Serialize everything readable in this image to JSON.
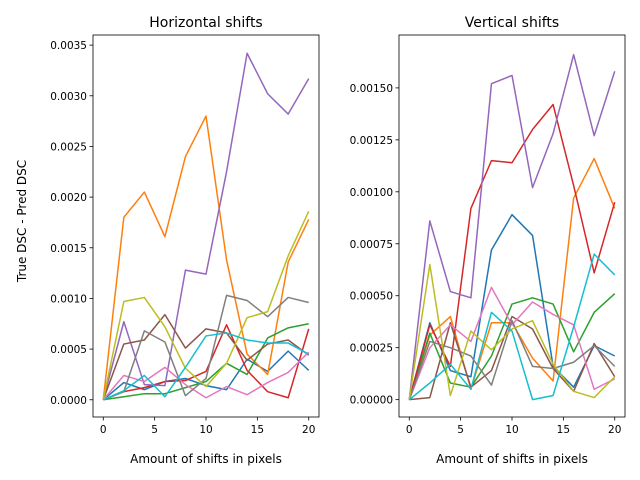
{
  "chart_data": [
    {
      "type": "line",
      "title": "Horizontal shifts",
      "xlabel": "Amount of shifts in pixels",
      "ylabel": "True DSC - Pred DSC",
      "x": [
        0,
        2,
        4,
        6,
        8,
        10,
        12,
        14,
        16,
        18,
        20
      ],
      "xlim": [
        -1,
        21
      ],
      "ylim": [
        -0.00017,
        0.0036
      ],
      "xticks": [
        0,
        5,
        10,
        15,
        20
      ],
      "yticks": [
        0.0,
        0.0005,
        0.001,
        0.0015,
        0.002,
        0.0025,
        0.003,
        0.0035
      ],
      "ytick_labels": [
        "0.0000",
        "0.0005",
        "0.0010",
        "0.0015",
        "0.0020",
        "0.0025",
        "0.0030",
        "0.0035"
      ],
      "grid": false,
      "series": [
        {
          "color": "#1f77b4",
          "values": [
            0.0,
            0.00017,
            0.0001,
            0.00018,
            0.00021,
            0.00014,
            0.0001,
            0.0004,
            0.00028,
            0.00048,
            0.00029
          ]
        },
        {
          "color": "#ff7f0e",
          "values": [
            0.0,
            0.0018,
            0.00205,
            0.00161,
            0.0024,
            0.0028,
            0.00138,
            0.00045,
            0.00025,
            0.00136,
            0.00178
          ]
        },
        {
          "color": "#2ca02c",
          "values": [
            0.0,
            3e-05,
            6e-05,
            6e-05,
            0.00012,
            0.00018,
            0.00036,
            0.00025,
            0.00061,
            0.00071,
            0.00075
          ]
        },
        {
          "color": "#d62728",
          "values": [
            0.0,
            8e-05,
            0.00012,
            0.00018,
            0.00019,
            0.00028,
            0.00074,
            0.00029,
            8e-05,
            2e-05,
            0.0007
          ]
        },
        {
          "color": "#9467bd",
          "values": [
            0.0,
            0.00077,
            0.00015,
            0.00014,
            0.00128,
            0.00124,
            0.00225,
            0.00342,
            0.00302,
            0.00282,
            0.00317
          ]
        },
        {
          "color": "#8c564b",
          "values": [
            0.0,
            0.00055,
            0.00059,
            0.00084,
            0.00051,
            0.0007,
            0.00066,
            0.00039,
            0.00055,
            0.00059,
            0.00044
          ]
        },
        {
          "color": "#e377c2",
          "values": [
            0.0,
            0.00024,
            0.00018,
            0.00032,
            0.00015,
            2e-05,
            0.00013,
            5e-05,
            0.00017,
            0.00027,
            0.00047
          ]
        },
        {
          "color": "#7f7f7f",
          "values": [
            0.0,
            8e-05,
            0.00068,
            0.00057,
            4e-05,
            0.00021,
            0.00103,
            0.00098,
            0.00082,
            0.00101,
            0.00096
          ]
        },
        {
          "color": "#bcbd22",
          "values": [
            0.0,
            0.00097,
            0.00101,
            0.00072,
            0.00031,
            0.00013,
            0.00036,
            0.00081,
            0.00087,
            0.00142,
            0.00186
          ]
        },
        {
          "color": "#17becf",
          "values": [
            0.0,
            9e-05,
            0.00024,
            3e-05,
            0.00032,
            0.00063,
            0.00066,
            0.00059,
            0.00056,
            0.00056,
            0.00045
          ]
        }
      ]
    },
    {
      "type": "line",
      "title": "Vertical shifts",
      "xlabel": "Amount of shifts in pixels",
      "ylabel": "",
      "x": [
        0,
        2,
        4,
        6,
        8,
        10,
        12,
        14,
        16,
        18,
        20
      ],
      "xlim": [
        -1,
        21
      ],
      "ylim": [
        -8.35e-05,
        0.0017545
      ],
      "xticks": [
        0,
        5,
        10,
        15,
        20
      ],
      "yticks": [
        0.0,
        0.00025,
        0.0005,
        0.00075,
        0.001,
        0.00125,
        0.0015
      ],
      "ytick_labels": [
        "0.00000",
        "0.00025",
        "0.00050",
        "0.00075",
        "0.00100",
        "0.00125",
        "0.00150"
      ],
      "grid": false,
      "series": [
        {
          "color": "#1f77b4",
          "values": [
            0.0,
            0.00037,
            0.00014,
            0.00011,
            0.00072,
            0.00089,
            0.00079,
            0.00016,
            6e-05,
            0.00026,
            0.00021
          ]
        },
        {
          "color": "#ff7f0e",
          "values": [
            0.0,
            0.00031,
            0.0004,
            5e-05,
            0.00037,
            0.00037,
            0.0002,
            9e-05,
            0.00097,
            0.00116,
            0.00092
          ]
        },
        {
          "color": "#2ca02c",
          "values": [
            0.0,
            0.00032,
            8e-05,
            6e-05,
            0.00021,
            0.00046,
            0.00049,
            0.00046,
            0.00023,
            0.00042,
            0.00051
          ]
        },
        {
          "color": "#d62728",
          "values": [
            0.0,
            0.00036,
            0.00016,
            0.00092,
            0.00115,
            0.00114,
            0.0013,
            0.00142,
            0.00103,
            0.00061,
            0.00095
          ]
        },
        {
          "color": "#9467bd",
          "values": [
            0.0,
            0.00086,
            0.00052,
            0.00049,
            0.00152,
            0.00156,
            0.00102,
            0.00128,
            0.00166,
            0.00127,
            0.00158
          ]
        },
        {
          "color": "#8c564b",
          "values": [
            0.0,
            1e-05,
            0.00037,
            6e-05,
            0.00014,
            0.0004,
            0.00034,
            0.00015,
            4e-05,
            0.00027,
            0.00011
          ]
        },
        {
          "color": "#e377c2",
          "values": [
            0.0,
            0.00025,
            0.00036,
            0.00028,
            0.00054,
            0.00036,
            0.00047,
            0.00041,
            0.00036,
            5e-05,
            0.0001
          ]
        },
        {
          "color": "#7f7f7f",
          "values": [
            0.0,
            0.00028,
            0.00025,
            0.00021,
            7e-05,
            0.00038,
            0.00016,
            0.00015,
            0.00018,
            0.00026,
            0.00016
          ]
        },
        {
          "color": "#bcbd22",
          "values": [
            0.0,
            0.00065,
            2e-05,
            0.00033,
            0.00024,
            0.00034,
            0.00038,
            0.00017,
            4e-05,
            1e-05,
            0.00011
          ]
        },
        {
          "color": "#17becf",
          "values": [
            0.0,
            8e-05,
            0.00017,
            5e-05,
            0.00042,
            0.00033,
            0.0,
            2e-05,
            0.00035,
            0.0007,
            0.0006
          ]
        }
      ]
    }
  ]
}
